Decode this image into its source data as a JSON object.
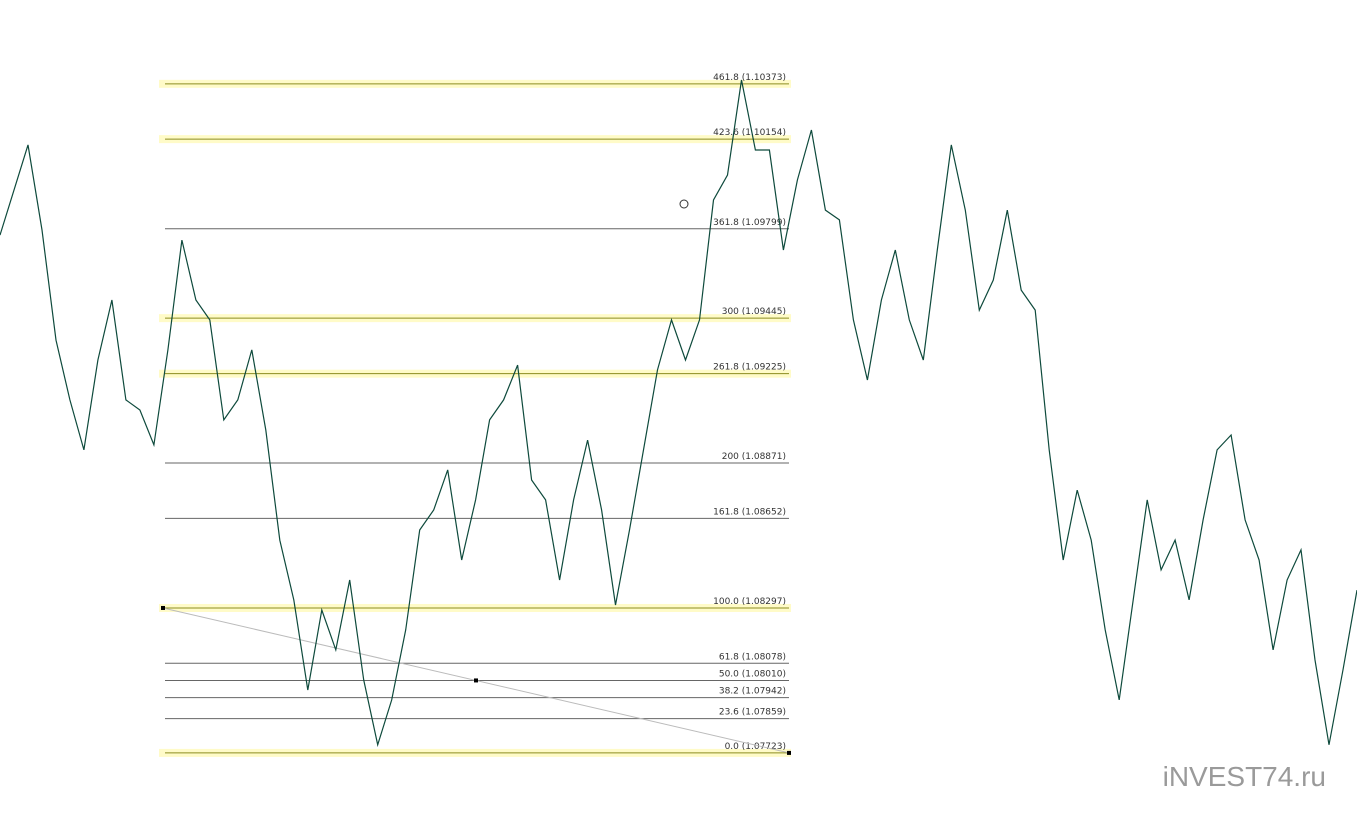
{
  "chart_data": {
    "type": "line",
    "color": "#0e4a3c",
    "values": [
      1.09774,
      1.09952,
      1.10131,
      1.09794,
      1.09358,
      1.09121,
      1.08923,
      1.09279,
      1.09517,
      1.09121,
      1.09081,
      1.08943,
      1.09319,
      1.09754,
      1.09517,
      1.09438,
      1.09042,
      1.09121,
      1.09319,
      1.09002,
      1.08566,
      1.08329,
      1.07972,
      1.08289,
      1.08131,
      1.08408,
      1.08012,
      1.07755,
      1.07933,
      1.0821,
      1.08606,
      1.08685,
      1.08844,
      1.08487,
      1.08725,
      1.09042,
      1.09121,
      1.09259,
      1.08804,
      1.08725,
      1.08408,
      1.08725,
      1.08962,
      1.08685,
      1.08309,
      1.08606,
      1.08923,
      1.0924,
      1.09438,
      1.09279,
      1.09438,
      1.09913,
      1.10012,
      1.10388,
      1.10111,
      1.10111,
      1.09715,
      1.09992,
      1.1019,
      1.09873,
      1.09834,
      1.09438,
      1.092,
      1.09517,
      1.09715,
      1.09438,
      1.09279,
      1.09715,
      1.10131,
      1.09873,
      1.09477,
      1.09596,
      1.09873,
      1.09556,
      1.09477,
      1.08923,
      1.08487,
      1.08764,
      1.08566,
      1.0821,
      1.07933,
      1.08329,
      1.08725,
      1.08448,
      1.08566,
      1.08329,
      1.08646,
      1.08923,
      1.08982,
      1.08646,
      1.08487,
      1.08131,
      1.08408,
      1.08527,
      1.08091,
      1.07755,
      1.08052,
      1.08368
    ],
    "ylim": [
      1.07485,
      1.10705
    ],
    "levels": [
      {
        "value": 1.10373,
        "label": "461.8 (1.10373)",
        "highlight": true
      },
      {
        "value": 1.10154,
        "label": "423.6 (1.10154)",
        "highlight": true
      },
      {
        "value": 1.09799,
        "label": "361.8 (1.09799)",
        "highlight": false
      },
      {
        "value": 1.09445,
        "label": "300 (1.09445)",
        "highlight": true
      },
      {
        "value": 1.09225,
        "label": "261.8 (1.09225)",
        "highlight": true
      },
      {
        "value": 1.08871,
        "label": "200 (1.08871)",
        "highlight": false
      },
      {
        "value": 1.08652,
        "label": "161.8 (1.08652)",
        "highlight": false
      },
      {
        "value": 1.08297,
        "label": "100.0 (1.08297)",
        "highlight": true
      },
      {
        "value": 1.08078,
        "label": "61.8 (1.08078)",
        "highlight": false
      },
      {
        "value": 1.0801,
        "label": "50.0 (1.08010)",
        "highlight": false
      },
      {
        "value": 1.07942,
        "label": "38.2 (1.07942)",
        "highlight": false
      },
      {
        "value": 1.07859,
        "label": "23.6 (1.07859)",
        "highlight": false
      },
      {
        "value": 1.07723,
        "label": "0.0 (1.07723)",
        "highlight": true
      }
    ],
    "watermark": "iNVEST74.ru"
  }
}
